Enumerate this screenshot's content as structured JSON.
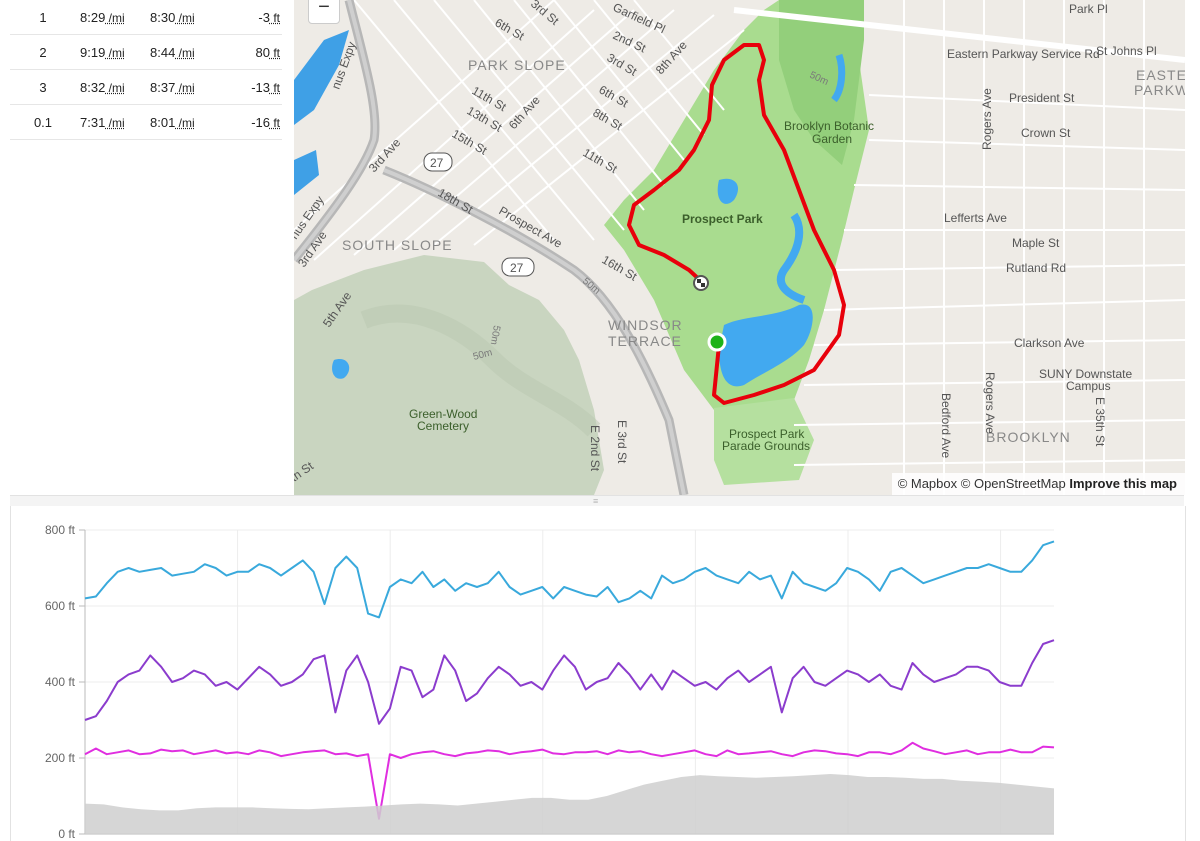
{
  "splits": {
    "rows": [
      {
        "mile": "1",
        "pace": "8:29",
        "gap": "8:30",
        "elev": "-3",
        "pace_unit": "/mi",
        "gap_unit": "/mi",
        "elev_unit": "ft"
      },
      {
        "mile": "2",
        "pace": "9:19",
        "gap": "8:44",
        "elev": "80",
        "pace_unit": "/mi",
        "gap_unit": "/mi",
        "elev_unit": "ft"
      },
      {
        "mile": "3",
        "pace": "8:32",
        "gap": "8:37",
        "elev": "-13",
        "pace_unit": "/mi",
        "gap_unit": "/mi",
        "elev_unit": "ft"
      },
      {
        "mile": "0.1",
        "pace": "7:31",
        "gap": "8:01",
        "elev": "-16",
        "pace_unit": "/mi",
        "gap_unit": "/mi",
        "elev_unit": "ft"
      }
    ]
  },
  "map": {
    "zoom_out_label": "−",
    "attribution": {
      "mapbox": "© Mapbox",
      "osm": "© OpenStreetMap",
      "improve": "Improve this map"
    },
    "colors": {
      "route": "#e8000b",
      "park": "#a8d88e",
      "park_dark": "#86c670",
      "water": "#3fa9f5",
      "cemetery": "#c6d3bd",
      "start": "#1db319"
    },
    "labels": {
      "park_slope": "PARK SLOPE",
      "south_slope": "SOUTH SLOPE",
      "windsor": "WINDSOR",
      "terrace": "TERRACE",
      "prospect_park": "Prospect Park",
      "botanic1": "Brooklyn Botanic",
      "botanic2": "Garden",
      "greenwood1": "Green-Wood",
      "greenwood2": "Cemetery",
      "parade1": "Prospect Park",
      "parade2": "Parade Grounds",
      "brooklyn": "BROOKLYN",
      "eastern1": "EASTE",
      "eastern2": "PARKW",
      "eastern_service": "Eastern Parkway Service Rd",
      "st_johns": "St Johns Pl",
      "park_pl": "Park Pl",
      "president": "President St",
      "crown": "Crown St",
      "lefferts": "Lefferts Ave",
      "maple": "Maple St",
      "rutland": "Rutland Rd",
      "clarkson": "Clarkson Ave",
      "suny1": "SUNY Downstate",
      "suny2": "Campus",
      "rogers": "Rogers Ave",
      "bedford": "Bedford Ave",
      "e35": "E 35th St",
      "sixth_st": "6th St",
      "third_st": "3rd St",
      "garfield": "Garfield Pl",
      "second_st": "2nd St",
      "eighth_ave": "8th Ave",
      "third_st2": "3rd St",
      "sixth_st2": "6th St",
      "eighth_st": "8th St",
      "eleventh": "11th St",
      "sixth_ave": "6th Ave",
      "thirteenth": "13th St",
      "fifteenth": "15th St",
      "eleventh2": "11th St",
      "eighteenth": "18th St",
      "prospect_ave": "Prospect Ave",
      "sixteenth": "16th St",
      "third_ave": "3rd Ave",
      "third_ave2": "3rd Ave",
      "fifth_ave": "5th Ave",
      "gowanus": "nus Expy",
      "gowanus2": "nus Expy",
      "e2nd": "E 2nd St",
      "e3rd": "E 3rd St",
      "fifty_m": "50m",
      "fifty_m2": "50m",
      "fifty_m3": "50m",
      "fifty_m4": "50m",
      "route_27": "27",
      "route_27b": "27",
      "th_st": "th St"
    }
  },
  "chart_data": {
    "type": "line",
    "ylabel": "",
    "ylim": [
      0,
      800
    ],
    "yticks": [
      "800 ft",
      "600 ft",
      "400 ft",
      "200 ft",
      "0 ft"
    ],
    "grid": true,
    "series": [
      {
        "color": "#39a9dc",
        "values": [
          620,
          625,
          660,
          690,
          700,
          690,
          695,
          700,
          680,
          685,
          690,
          710,
          700,
          680,
          690,
          690,
          710,
          700,
          680,
          700,
          720,
          690,
          605,
          700,
          730,
          700,
          580,
          570,
          650,
          670,
          660,
          690,
          650,
          670,
          640,
          660,
          650,
          660,
          690,
          650,
          630,
          640,
          650,
          620,
          650,
          640,
          630,
          625,
          650,
          610,
          620,
          640,
          620,
          680,
          660,
          670,
          690,
          700,
          680,
          670,
          660,
          690,
          670,
          680,
          620,
          690,
          660,
          650,
          640,
          660,
          700,
          690,
          670,
          640,
          690,
          700,
          680,
          660,
          670,
          680,
          690,
          700,
          700,
          710,
          700,
          690,
          690,
          720,
          760,
          770
        ]
      },
      {
        "color": "#8b3ccd",
        "values": [
          300,
          310,
          350,
          400,
          420,
          430,
          470,
          440,
          400,
          410,
          430,
          420,
          390,
          400,
          380,
          410,
          440,
          420,
          390,
          400,
          420,
          460,
          470,
          320,
          430,
          470,
          400,
          290,
          330,
          440,
          430,
          360,
          380,
          470,
          430,
          350,
          370,
          410,
          440,
          420,
          390,
          400,
          380,
          430,
          470,
          440,
          380,
          400,
          410,
          450,
          420,
          380,
          420,
          380,
          430,
          410,
          390,
          400,
          380,
          410,
          430,
          400,
          420,
          440,
          320,
          410,
          440,
          400,
          390,
          410,
          430,
          420,
          400,
          420,
          390,
          380,
          450,
          420,
          400,
          410,
          420,
          440,
          440,
          430,
          400,
          390,
          390,
          450,
          500,
          510
        ]
      },
      {
        "color": "#e02ee0",
        "values": [
          210,
          225,
          210,
          215,
          220,
          210,
          212,
          222,
          218,
          220,
          210,
          215,
          220,
          212,
          215,
          210,
          220,
          215,
          205,
          210,
          215,
          218,
          220,
          210,
          212,
          205,
          210,
          40,
          210,
          200,
          210,
          215,
          218,
          210,
          205,
          212,
          215,
          220,
          218,
          210,
          215,
          218,
          222,
          212,
          210,
          215,
          215,
          218,
          210,
          220,
          215,
          218,
          210,
          205,
          210,
          215,
          220,
          210,
          205,
          220,
          210,
          212,
          215,
          218,
          210,
          205,
          215,
          220,
          218,
          212,
          210,
          205,
          215,
          215,
          210,
          220,
          240,
          225,
          218,
          210,
          215,
          220,
          210,
          215,
          215,
          222,
          215,
          215,
          230,
          228
        ]
      },
      {
        "color": "#cfcfcf",
        "values": [
          80,
          78,
          70,
          65,
          62,
          62,
          68,
          70,
          70,
          70,
          68,
          66,
          65,
          68,
          70,
          72,
          75,
          78,
          80,
          78,
          75,
          80,
          85,
          90,
          95,
          95,
          90,
          90,
          100,
          115,
          130,
          140,
          150,
          155,
          152,
          150,
          148,
          150,
          152,
          155,
          158,
          155,
          150,
          150,
          148,
          145,
          145,
          140,
          138,
          135,
          130,
          125,
          120
        ]
      }
    ]
  }
}
